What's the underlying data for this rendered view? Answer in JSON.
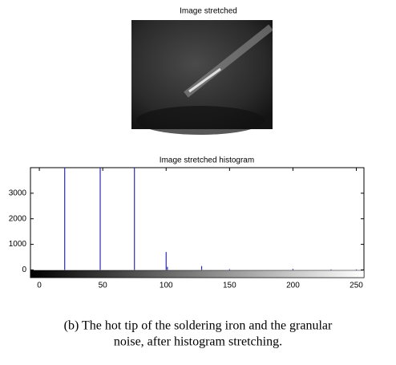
{
  "image": {
    "title": "Image stretched"
  },
  "chart_data": {
    "type": "bar",
    "title": "Image stretched histogram",
    "x": [
      20,
      48,
      75,
      100,
      101,
      128,
      150,
      200,
      230,
      250
    ],
    "values": [
      4000,
      4000,
      4000,
      700,
      120,
      150,
      30,
      40,
      20,
      20
    ],
    "color": "#2b2bb0",
    "xlim": [
      -7,
      256
    ],
    "xticks": [
      0,
      50,
      100,
      150,
      200,
      250
    ],
    "ylim": [
      -300,
      4000
    ],
    "yticks": [
      0,
      1000,
      2000,
      3000
    ],
    "grid": false
  },
  "caption": [
    "(b) The hot tip of the soldering iron and the granular",
    "noise, after histogram stretching."
  ]
}
